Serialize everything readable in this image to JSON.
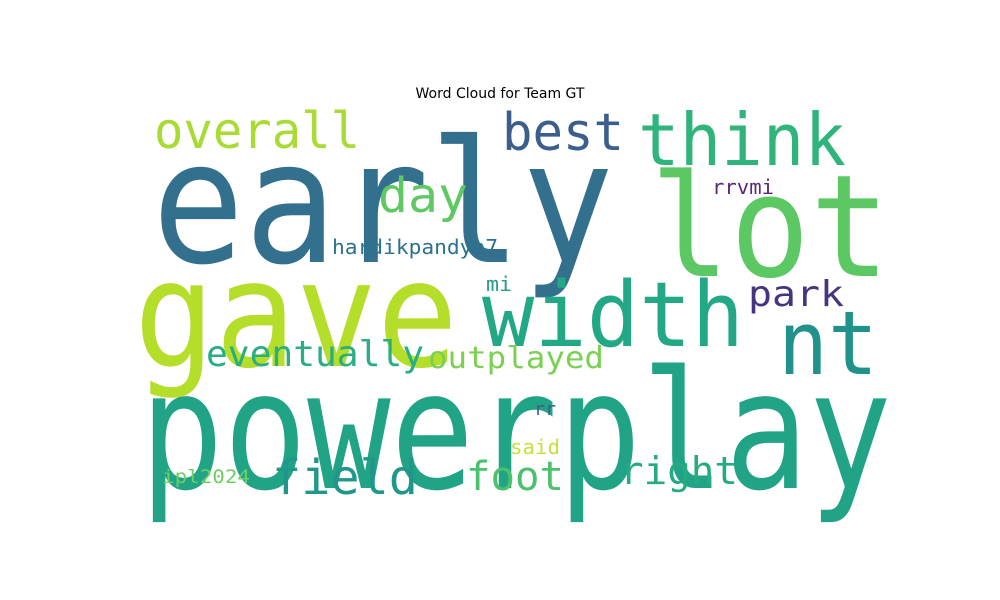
{
  "chart_data": {
    "type": "wordcloud",
    "title": "Word Cloud for Team GT",
    "words": [
      {
        "text": "powerplay",
        "color": "#21a386"
      },
      {
        "text": "early",
        "color": "#33708d"
      },
      {
        "text": "gave",
        "color": "#b5de2b"
      },
      {
        "text": "lot",
        "color": "#5cc863"
      },
      {
        "text": "width",
        "color": "#22a884"
      },
      {
        "text": "nt",
        "color": "#21918c"
      },
      {
        "text": "think",
        "color": "#2fb47c"
      },
      {
        "text": "best",
        "color": "#3b5e8c"
      },
      {
        "text": "overall",
        "color": "#a8db34"
      },
      {
        "text": "day",
        "color": "#5ec962"
      },
      {
        "text": "field",
        "color": "#1f978b"
      },
      {
        "text": "foot",
        "color": "#4ac16d"
      },
      {
        "text": "right",
        "color": "#25ab82"
      },
      {
        "text": "eventually",
        "color": "#28ae80"
      },
      {
        "text": "outplayed",
        "color": "#7ad151"
      },
      {
        "text": "park",
        "color": "#463480"
      },
      {
        "text": "hardikpandya7",
        "color": "#2c728e"
      },
      {
        "text": "rrvmi",
        "color": "#5b2a75"
      },
      {
        "text": "mi",
        "color": "#2a9a8a"
      },
      {
        "text": "rr",
        "color": "#3f5f8c"
      },
      {
        "text": "said",
        "color": "#c8df3c"
      },
      {
        "text": "ipl2024",
        "color": "#6fcf62"
      }
    ]
  }
}
